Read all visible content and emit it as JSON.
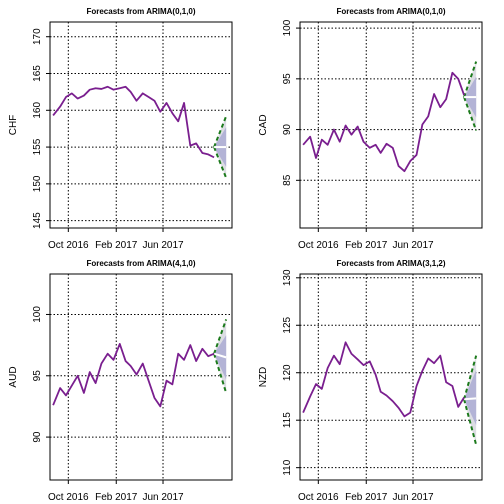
{
  "colors": {
    "history": "#7a1f8f",
    "point_forecast": "#ffffff",
    "band_80": "#b3b3d6",
    "band_95": "#dcdde3",
    "pi_dashed": "#1c7a1c",
    "grid": "#000000"
  },
  "chart_data": [
    {
      "type": "line",
      "title": "Forecasts from ARIMA(0,1,0)",
      "ylabel": "CHF",
      "xlabel": "",
      "x_ticks": [
        "Oct 2016",
        "Feb 2017",
        "Jun 2017"
      ],
      "y_ticks": [
        145,
        150,
        155,
        160,
        165,
        170
      ],
      "ylim": [
        144,
        172
      ],
      "grid": true,
      "history": {
        "x": [
          "2016-08-23",
          "2016-09-10",
          "2016-09-25",
          "2016-10-10",
          "2016-10-25",
          "2016-11-10",
          "2016-11-25",
          "2016-12-10",
          "2016-12-25",
          "2017-01-10",
          "2017-01-25",
          "2017-02-10",
          "2017-02-25",
          "2017-03-10",
          "2017-03-25",
          "2017-04-10",
          "2017-04-25",
          "2017-05-10",
          "2017-05-25",
          "2017-06-10",
          "2017-06-25",
          "2017-07-10",
          "2017-07-25",
          "2017-08-10",
          "2017-08-25",
          "2017-09-10",
          "2017-09-25",
          "2017-10-10"
        ],
        "y": [
          159.3,
          160.5,
          161.8,
          162.3,
          161.6,
          162.0,
          162.8,
          163.0,
          162.9,
          163.2,
          162.8,
          163.0,
          163.2,
          162.5,
          161.3,
          162.3,
          161.8,
          161.3,
          159.8,
          161.0,
          159.6,
          158.5,
          161.0,
          155.2,
          155.5,
          154.2,
          154.0,
          153.6
        ]
      },
      "forecast": {
        "x": [
          "2017-10-10",
          "2017-11-10"
        ],
        "point": [
          155.0,
          155.0
        ],
        "lo80": [
          155.0,
          152.3
        ],
        "hi80": [
          155.0,
          157.7
        ],
        "lo95": [
          155.0,
          150.8
        ],
        "hi95": [
          155.0,
          159.2
        ]
      }
    },
    {
      "type": "line",
      "title": "Forecasts from ARIMA(0,1,0)",
      "ylabel": "CAD",
      "xlabel": "",
      "x_ticks": [
        "Oct 2016",
        "Feb 2017",
        "Jun 2017"
      ],
      "y_ticks": [
        85,
        90,
        95,
        100
      ],
      "ylim": [
        80.3,
        100.6
      ],
      "grid": true,
      "history": {
        "x": [
          "2016-08-23",
          "2016-09-10",
          "2016-09-25",
          "2016-10-10",
          "2016-10-25",
          "2016-11-10",
          "2016-11-25",
          "2016-12-10",
          "2016-12-25",
          "2017-01-10",
          "2017-01-25",
          "2017-02-10",
          "2017-02-25",
          "2017-03-10",
          "2017-03-25",
          "2017-04-10",
          "2017-04-25",
          "2017-05-10",
          "2017-05-25",
          "2017-06-10",
          "2017-06-25",
          "2017-07-10",
          "2017-07-25",
          "2017-08-10",
          "2017-08-25",
          "2017-09-10",
          "2017-09-25",
          "2017-10-10"
        ],
        "y": [
          88.5,
          89.3,
          87.2,
          89.0,
          88.5,
          90.0,
          88.8,
          90.4,
          89.5,
          90.3,
          88.8,
          88.2,
          88.5,
          87.7,
          88.6,
          88.2,
          86.4,
          85.9,
          86.9,
          87.5,
          90.5,
          91.3,
          93.5,
          92.2,
          93.0,
          95.6,
          95.0,
          93.4
        ]
      },
      "forecast": {
        "x": [
          "2017-10-10",
          "2017-11-10"
        ],
        "point": [
          93.2,
          93.2
        ],
        "lo80": [
          93.2,
          91.2
        ],
        "hi80": [
          93.2,
          95.2
        ],
        "lo95": [
          93.2,
          89.9
        ],
        "hi95": [
          93.2,
          96.7
        ]
      }
    },
    {
      "type": "line",
      "title": "Forecasts from ARIMA(4,1,0)",
      "ylabel": "AUD",
      "xlabel": "",
      "x_ticks": [
        "Oct 2016",
        "Feb 2017",
        "Jun 2017"
      ],
      "y_ticks": [
        90,
        95,
        100
      ],
      "ylim": [
        86.5,
        103.3
      ],
      "grid": true,
      "history": {
        "x": [
          "2016-08-23",
          "2016-09-10",
          "2016-09-25",
          "2016-10-10",
          "2016-10-25",
          "2016-11-10",
          "2016-11-25",
          "2016-12-10",
          "2016-12-25",
          "2017-01-10",
          "2017-01-25",
          "2017-02-10",
          "2017-02-25",
          "2017-03-10",
          "2017-03-25",
          "2017-04-10",
          "2017-04-25",
          "2017-05-10",
          "2017-05-25",
          "2017-06-10",
          "2017-06-25",
          "2017-07-10",
          "2017-07-25",
          "2017-08-10",
          "2017-08-25",
          "2017-09-10",
          "2017-09-25",
          "2017-10-10"
        ],
        "y": [
          92.6,
          94.0,
          93.4,
          94.2,
          95.0,
          93.6,
          95.3,
          94.4,
          96.0,
          96.8,
          96.3,
          97.6,
          96.2,
          95.8,
          95.1,
          96.0,
          94.6,
          93.2,
          92.5,
          94.6,
          94.3,
          96.8,
          96.3,
          97.5,
          96.2,
          97.2,
          96.6,
          96.8
        ]
      },
      "forecast": {
        "x": [
          "2017-10-10",
          "2017-11-10"
        ],
        "point": [
          96.8,
          96.5
        ],
        "lo80": [
          96.8,
          94.7
        ],
        "hi80": [
          96.8,
          98.3
        ],
        "lo95": [
          96.8,
          93.6
        ],
        "hi95": [
          96.8,
          99.6
        ]
      }
    },
    {
      "type": "line",
      "title": "Forecasts from ARIMA(3,1,2)",
      "ylabel": "NZD",
      "xlabel": "",
      "x_ticks": [
        "Oct 2016",
        "Feb 2017",
        "Jun 2017"
      ],
      "y_ticks": [
        110,
        115,
        120,
        125,
        130
      ],
      "ylim": [
        108.7,
        130.4
      ],
      "grid": true,
      "history": {
        "x": [
          "2016-08-23",
          "2016-09-10",
          "2016-09-25",
          "2016-10-10",
          "2016-10-25",
          "2016-11-10",
          "2016-11-25",
          "2016-12-10",
          "2016-12-25",
          "2017-01-10",
          "2017-01-25",
          "2017-02-10",
          "2017-02-25",
          "2017-03-10",
          "2017-03-25",
          "2017-04-10",
          "2017-04-25",
          "2017-05-10",
          "2017-05-25",
          "2017-06-10",
          "2017-06-25",
          "2017-07-10",
          "2017-07-25",
          "2017-08-10",
          "2017-08-25",
          "2017-09-10",
          "2017-09-25",
          "2017-10-10"
        ],
        "y": [
          115.8,
          117.5,
          118.8,
          118.3,
          120.5,
          121.8,
          120.9,
          123.2,
          122.0,
          121.4,
          120.8,
          121.2,
          119.8,
          118.0,
          117.6,
          117.0,
          116.3,
          115.4,
          115.8,
          118.6,
          120.2,
          121.5,
          121.0,
          121.8,
          119.0,
          118.6,
          116.4,
          117.4
        ]
      },
      "forecast": {
        "x": [
          "2017-10-10",
          "2017-11-10"
        ],
        "point": [
          117.2,
          117.3
        ],
        "lo80": [
          117.2,
          114.5
        ],
        "hi80": [
          117.2,
          120.3
        ],
        "lo95": [
          117.2,
          112.4
        ],
        "hi95": [
          117.2,
          121.8
        ]
      }
    }
  ]
}
